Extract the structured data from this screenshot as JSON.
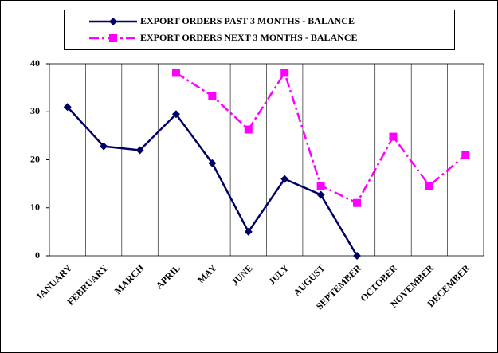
{
  "chart_data": {
    "type": "line",
    "categories": [
      "JANUARY",
      "FEBRUARY",
      "MARCH",
      "APRIL",
      "MAY",
      "JUNE",
      "JULY",
      "AUGUST",
      "SEPTEMBER",
      "OCTOBER",
      "NOVEMBER",
      "DECEMBER"
    ],
    "series": [
      {
        "name": "EXPORT ORDERS PAST 3 MONTHS - BALANCE",
        "color": "#000066",
        "marker": "diamond",
        "dash": "solid",
        "values": [
          31,
          22.8,
          22,
          29.5,
          19.3,
          5,
          16,
          12.7,
          0,
          null,
          null,
          null
        ]
      },
      {
        "name": "EXPORT ORDERS NEXT 3 MONTHS - BALANCE",
        "color": "#ff00ff",
        "marker": "square",
        "dash": "dashdot",
        "values": [
          null,
          null,
          null,
          38.1,
          33.3,
          26.3,
          38.1,
          14.6,
          11,
          24.8,
          14.6,
          21
        ]
      }
    ],
    "ylim": [
      0,
      40
    ],
    "yticks": [
      0,
      10,
      20,
      30,
      40
    ],
    "xgrid": true,
    "legend": "top"
  }
}
